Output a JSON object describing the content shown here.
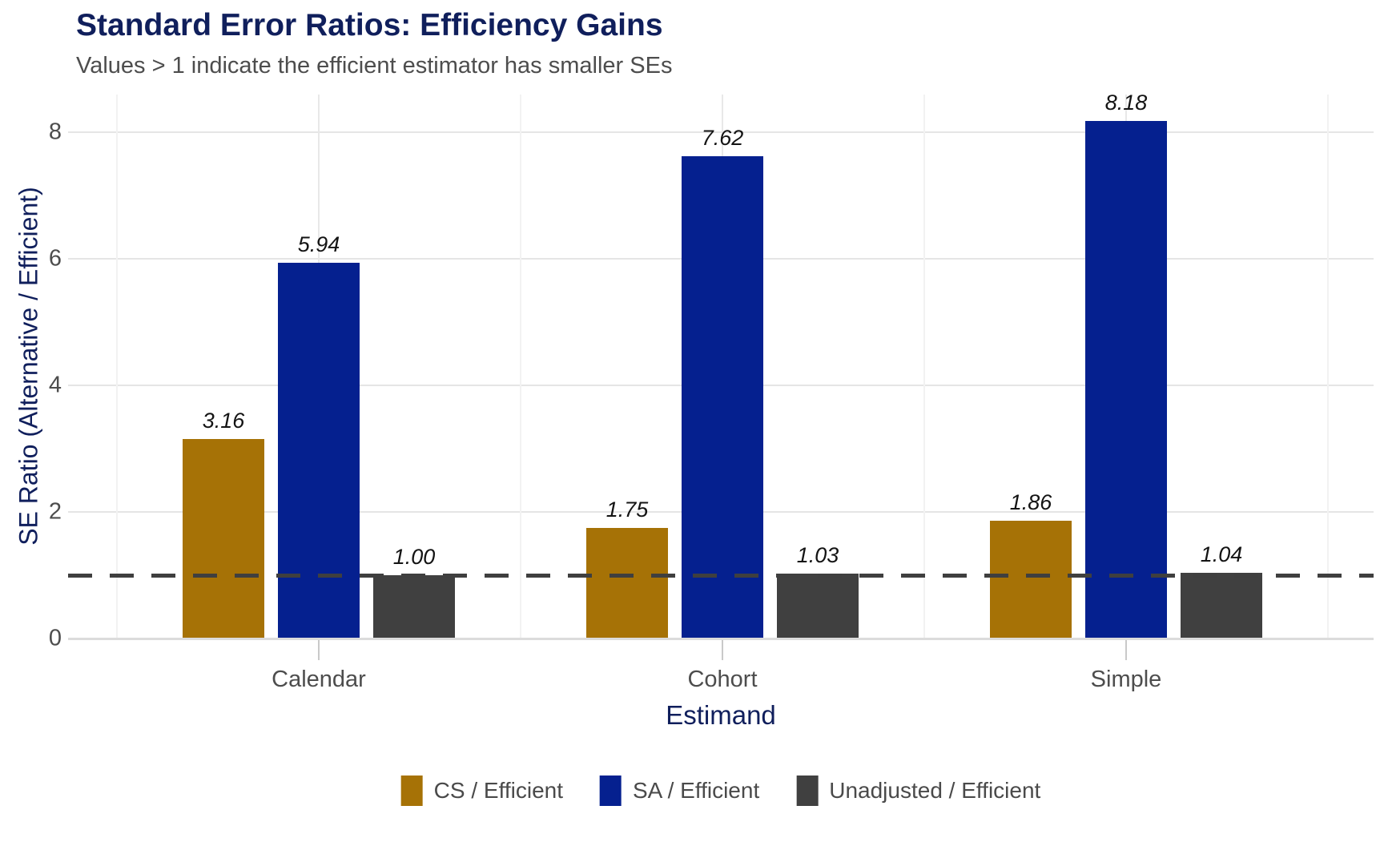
{
  "chart_data": {
    "type": "bar",
    "title": "Standard Error Ratios: Efficiency Gains",
    "subtitle": "Values > 1 indicate the efficient estimator has smaller SEs",
    "xlabel": "Estimand",
    "ylabel": "SE Ratio (Alternative / Efficient)",
    "categories": [
      "Calendar",
      "Cohort",
      "Simple"
    ],
    "series": [
      {
        "name": "CS / Efficient",
        "color": "#A67206",
        "values": [
          3.16,
          1.75,
          1.86
        ],
        "labels": [
          "3.16",
          "1.75",
          "1.86"
        ]
      },
      {
        "name": "SA / Efficient",
        "color": "#05208F",
        "values": [
          5.94,
          7.62,
          8.18
        ],
        "labels": [
          "5.94",
          "7.62",
          "8.18"
        ]
      },
      {
        "name": "Unadjusted / Efficient",
        "color": "#404040",
        "values": [
          1.0,
          1.03,
          1.04
        ],
        "labels": [
          "1.00",
          "1.03",
          "1.04"
        ]
      }
    ],
    "yticks": [
      0,
      2,
      4,
      6,
      8
    ],
    "ylim": [
      0,
      8.6
    ],
    "reference_line": 1.0,
    "grid": true,
    "legend_position": "bottom"
  },
  "colors": {
    "title": "#101F5C",
    "subtitle": "#4D4D4D",
    "axis_title": "#101F5C",
    "tick_label": "#4D4D4D",
    "reference_line": "#3F3F3F",
    "gridline": "#E5E5E5"
  }
}
